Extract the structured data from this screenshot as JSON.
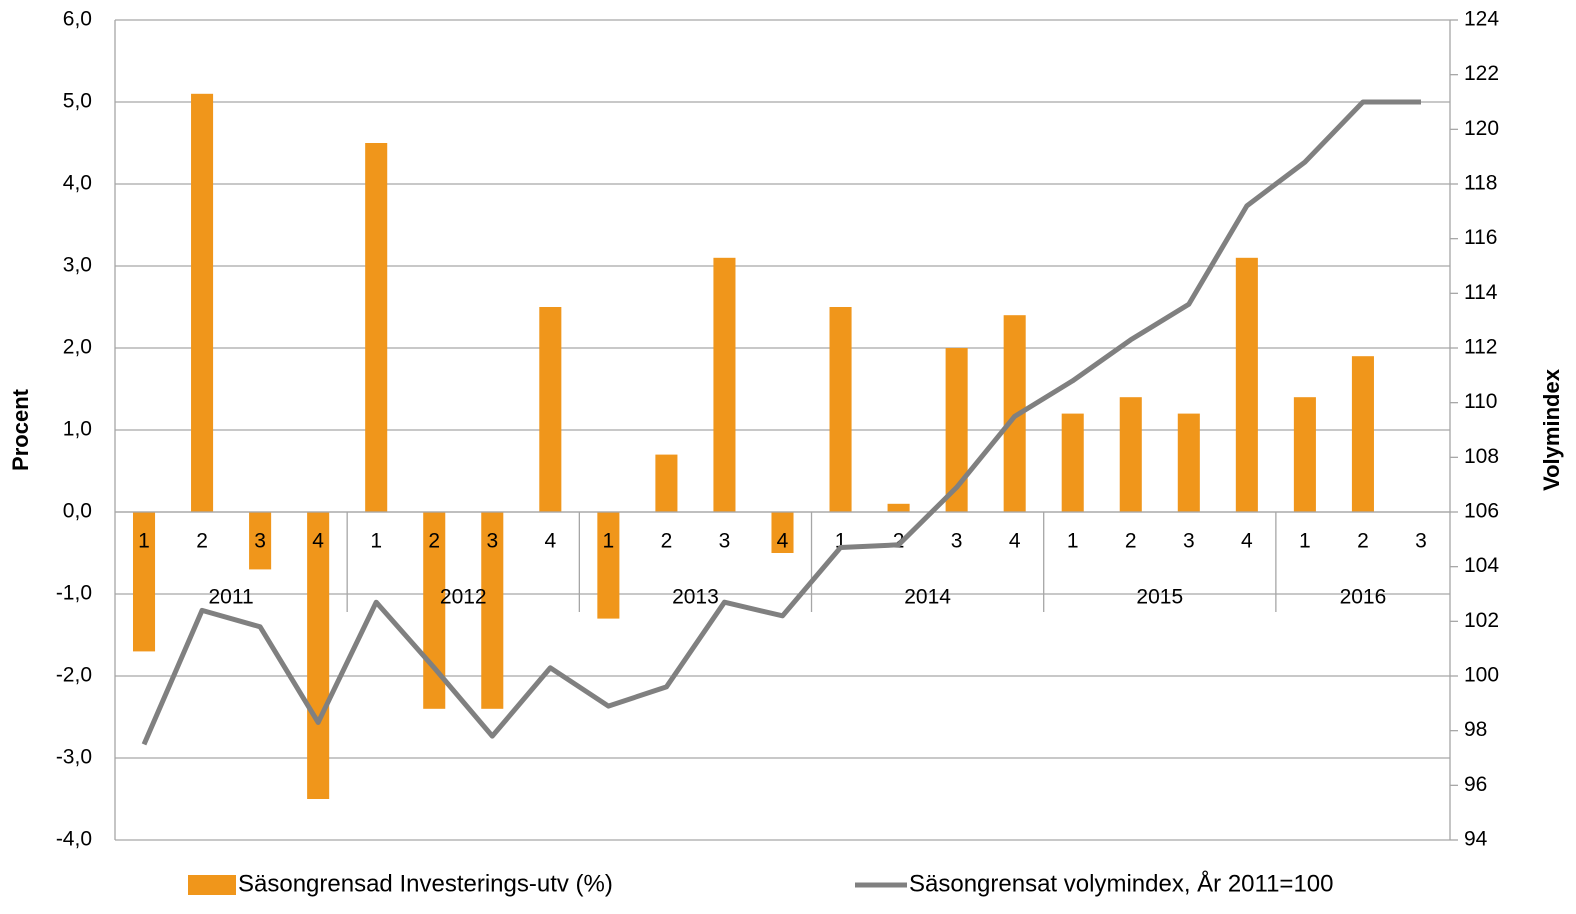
{
  "chart_data": {
    "type": "bar-line",
    "categories": [
      "1",
      "2",
      "3",
      "4",
      "1",
      "2",
      "3",
      "4",
      "1",
      "2",
      "3",
      "4",
      "1",
      "2",
      "3",
      "4",
      "1",
      "2",
      "3",
      "4",
      "1",
      "2",
      "3"
    ],
    "groups": [
      {
        "label": "2011",
        "count": 4
      },
      {
        "label": "2012",
        "count": 4
      },
      {
        "label": "2013",
        "count": 4
      },
      {
        "label": "2014",
        "count": 4
      },
      {
        "label": "2015",
        "count": 4
      },
      {
        "label": "2016",
        "count": 3
      }
    ],
    "series": [
      {
        "name": "Säsongrensad Investerings-utv (%)",
        "type": "bar",
        "color": "#f0961b",
        "values": [
          -1.7,
          5.1,
          -0.7,
          -3.5,
          4.5,
          -2.4,
          -2.4,
          2.5,
          -1.3,
          0.7,
          3.1,
          -0.5,
          2.5,
          0.1,
          2.0,
          2.4,
          1.2,
          1.4,
          1.2,
          3.1,
          1.4,
          1.9,
          null
        ]
      },
      {
        "name": "Säsongrensat volymindex, År 2011=100",
        "type": "line",
        "axis": "y2",
        "color": "#808080",
        "values": [
          97.5,
          102.4,
          101.8,
          98.3,
          102.7,
          100.3,
          97.8,
          100.3,
          98.9,
          99.6,
          102.7,
          102.2,
          104.7,
          104.8,
          106.9,
          109.5,
          110.8,
          112.3,
          113.6,
          117.2,
          118.8,
          121.0,
          121.0
        ]
      }
    ],
    "ylabel": "Procent",
    "y2label": "Volymindex",
    "ylim": [
      -4,
      6
    ],
    "yticks": [
      {
        "value": -4,
        "label": "-4,0"
      },
      {
        "value": -3,
        "label": "-3,0"
      },
      {
        "value": -2,
        "label": "-2,0"
      },
      {
        "value": -1,
        "label": "-1,0"
      },
      {
        "value": 0,
        "label": "0,0"
      },
      {
        "value": 1,
        "label": "1,0"
      },
      {
        "value": 2,
        "label": "2,0"
      },
      {
        "value": 3,
        "label": "3,0"
      },
      {
        "value": 4,
        "label": "4,0"
      },
      {
        "value": 5,
        "label": "5,0"
      },
      {
        "value": 6,
        "label": "6,0"
      }
    ],
    "y2lim": [
      94,
      124
    ],
    "y2ticks": [
      94,
      96,
      98,
      100,
      102,
      104,
      106,
      108,
      110,
      112,
      114,
      116,
      118,
      120,
      122,
      124
    ],
    "grid": true,
    "legend": "bottom"
  }
}
